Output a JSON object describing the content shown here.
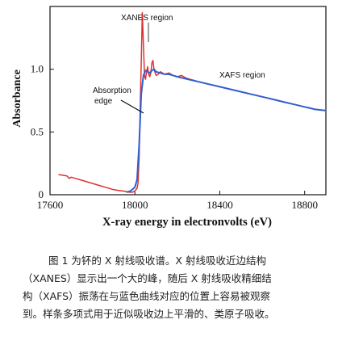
{
  "chart_data": {
    "type": "line",
    "xlabel": "X-ray energy in electronvolts (eV)",
    "ylabel": "Absorbance",
    "xlim": [
      17600,
      18900
    ],
    "ylim": [
      0,
      1.5
    ],
    "x_ticks": [
      17600,
      18000,
      18400,
      18800
    ],
    "y_ticks": [
      0,
      0.5,
      1.0
    ],
    "y_tick_labels": [
      "0",
      "0.5",
      "1.0"
    ],
    "grid": false,
    "annotations": [
      {
        "text": "XANES region"
      },
      {
        "text": "XAFS region"
      },
      {
        "text": "Absorption"
      },
      {
        "text": "edge"
      }
    ],
    "series": [
      {
        "color": "#e03030",
        "x": [
          17640,
          17660,
          17680,
          17690,
          17700,
          17720,
          17740,
          17760,
          17780,
          17800,
          17820,
          17840,
          17860,
          17880,
          17900,
          17920,
          17940,
          17960,
          17970,
          17980,
          17990,
          18000,
          18010,
          18015,
          18020,
          18025,
          18030,
          18035,
          18040,
          18045,
          18050,
          18055,
          18060,
          18065,
          18070,
          18075,
          18080,
          18085,
          18090,
          18100,
          18110,
          18120,
          18130,
          18140,
          18160,
          18180,
          18200,
          18220,
          18240,
          18260,
          18280,
          18300,
          18350,
          18400,
          18450,
          18500,
          18550,
          18600,
          18650,
          18700,
          18750,
          18800,
          18850,
          18900
        ],
        "y": [
          0.16,
          0.155,
          0.15,
          0.13,
          0.14,
          0.13,
          0.12,
          0.11,
          0.1,
          0.09,
          0.08,
          0.07,
          0.06,
          0.05,
          0.04,
          0.035,
          0.03,
          0.025,
          0.02,
          0.02,
          0.02,
          0.03,
          0.05,
          0.1,
          0.3,
          0.7,
          1.05,
          1.45,
          1.2,
          0.95,
          0.92,
          0.98,
          1.02,
          0.96,
          0.94,
          0.97,
          1.05,
          1.07,
          1.0,
          0.95,
          0.96,
          0.98,
          0.97,
          0.96,
          0.97,
          0.95,
          0.94,
          0.95,
          0.93,
          0.92,
          0.91,
          0.9,
          0.88,
          0.86,
          0.84,
          0.82,
          0.8,
          0.78,
          0.76,
          0.74,
          0.72,
          0.7,
          0.68,
          0.67
        ]
      },
      {
        "color": "#3060d0",
        "x": [
          17960,
          17980,
          18000,
          18010,
          18020,
          18030,
          18040,
          18050,
          18060,
          18070,
          18080,
          18090,
          18100,
          18120,
          18140,
          18160,
          18180,
          18200,
          18250,
          18300,
          18350,
          18400,
          18450,
          18500,
          18550,
          18600,
          18650,
          18700,
          18750,
          18800,
          18850,
          18900
        ],
        "y": [
          0.02,
          0.03,
          0.06,
          0.12,
          0.4,
          0.8,
          0.95,
          0.99,
          0.98,
          0.97,
          0.99,
          1.0,
          0.98,
          0.97,
          0.96,
          0.96,
          0.95,
          0.94,
          0.92,
          0.9,
          0.88,
          0.86,
          0.84,
          0.82,
          0.8,
          0.78,
          0.76,
          0.74,
          0.72,
          0.7,
          0.68,
          0.67
        ]
      }
    ]
  },
  "caption": {
    "lines": [
      "图 1 为钚的 X 射线吸收谱。X 射线吸收近边结构",
      "（XANES）显示出一个大的峰，随后 X 射线吸收精细结",
      "构（XAFS）振荡在与蓝色曲线对应的位置上容易被观察",
      "到。样条多项式用于近似吸收边上平滑的、类原子吸收。"
    ]
  }
}
